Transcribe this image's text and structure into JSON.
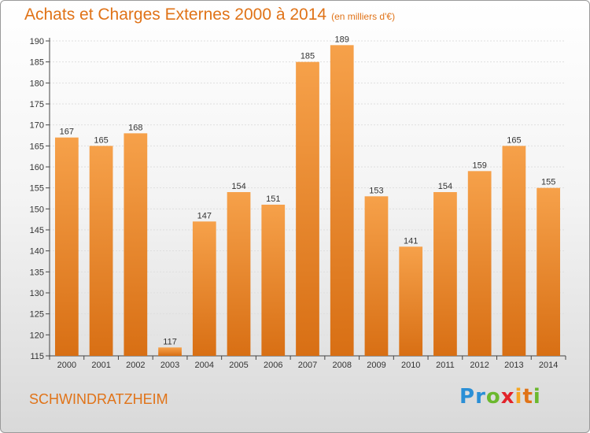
{
  "chart_data": {
    "type": "bar",
    "title": "Achats et Charges Externes 2000 à 2014",
    "subtitle": "(en milliers d'€)",
    "categories": [
      "2000",
      "2001",
      "2002",
      "2003",
      "2004",
      "2005",
      "2006",
      "2007",
      "2008",
      "2009",
      "2010",
      "2011",
      "2012",
      "2013",
      "2014"
    ],
    "values": [
      167,
      165,
      168,
      117,
      147,
      154,
      151,
      185,
      189,
      153,
      141,
      154,
      159,
      165,
      155
    ],
    "ylim": [
      115,
      190
    ],
    "yticks": [
      115,
      120,
      125,
      130,
      135,
      140,
      145,
      150,
      155,
      160,
      165,
      170,
      175,
      180,
      185,
      190
    ],
    "grid": true,
    "bar_color": "#f0922e",
    "data_labels": true
  },
  "commune": "SCHWINDRATZHEIM",
  "logo": {
    "text": "Proxiti",
    "letters": [
      "P",
      "r",
      "o",
      "x",
      "i",
      "t",
      "i"
    ],
    "colors": [
      "#2a8fd6",
      "#2a8fd6",
      "#6bb82e",
      "#e2232a",
      "#f5a623",
      "#e07318",
      "#6bb82e"
    ]
  },
  "colors": {
    "accent": "#e07318"
  }
}
